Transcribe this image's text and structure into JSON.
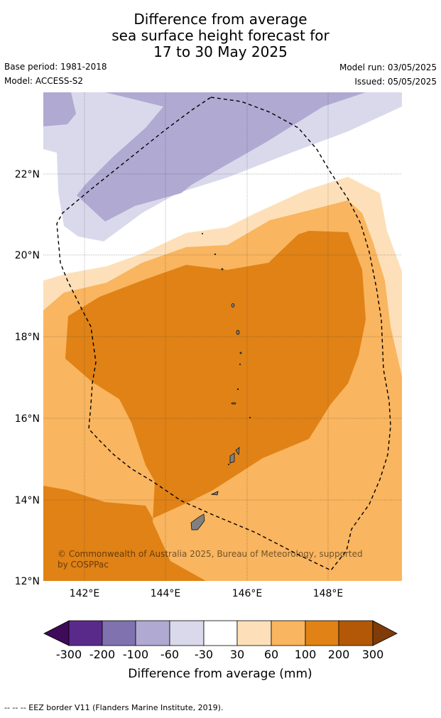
{
  "header": {
    "title_line1": "Difference from average",
    "title_line2": "sea surface height forecast for",
    "title_line3": "17 to 30 May 2025",
    "base_period": "Base period: 1981-2018",
    "model": "Model: ACCESS-S2",
    "model_run": "Model run: 03/05/2025",
    "issued": "Issued: 05/05/2025"
  },
  "map": {
    "lon_ticks": [
      "142°E",
      "144°E",
      "146°E",
      "148°E"
    ],
    "lat_ticks": [
      "22°N",
      "20°N",
      "18°N",
      "16°N",
      "14°N",
      "12°N"
    ],
    "copyright": "© Commonwealth of Australia 2025, Bureau of Meteorology, supported by COSPPac",
    "copyright_line1": "© Commonwealth of Australia 2025, Bureau of Meteorology, supported",
    "copyright_line2": "by COSPPac",
    "fill_colors": {
      "neg_60_30": "#d9d9eb",
      "neg_100_60": "#b0a9d2",
      "pos_30_60": "#fde0b9",
      "pos_60_100": "#f9b55f",
      "pos_100_200": "#e08216",
      "land": "#808080"
    }
  },
  "colorbar": {
    "label": "Difference from average (mm)",
    "ticks": [
      "-300",
      "-200",
      "-100",
      "-60",
      "-30",
      "30",
      "60",
      "100",
      "200",
      "300"
    ],
    "colors": [
      "#3f0a57",
      "#5a2a8a",
      "#8072ae",
      "#b0a9d2",
      "#d9d9eb",
      "#ffffff",
      "#fde0b9",
      "#f9b55f",
      "#e08216",
      "#b35806",
      "#7f3b08"
    ]
  },
  "footer": {
    "legend_line": "-- -- -- EEZ border V11 (Flanders Marine Institute, 2019)."
  }
}
